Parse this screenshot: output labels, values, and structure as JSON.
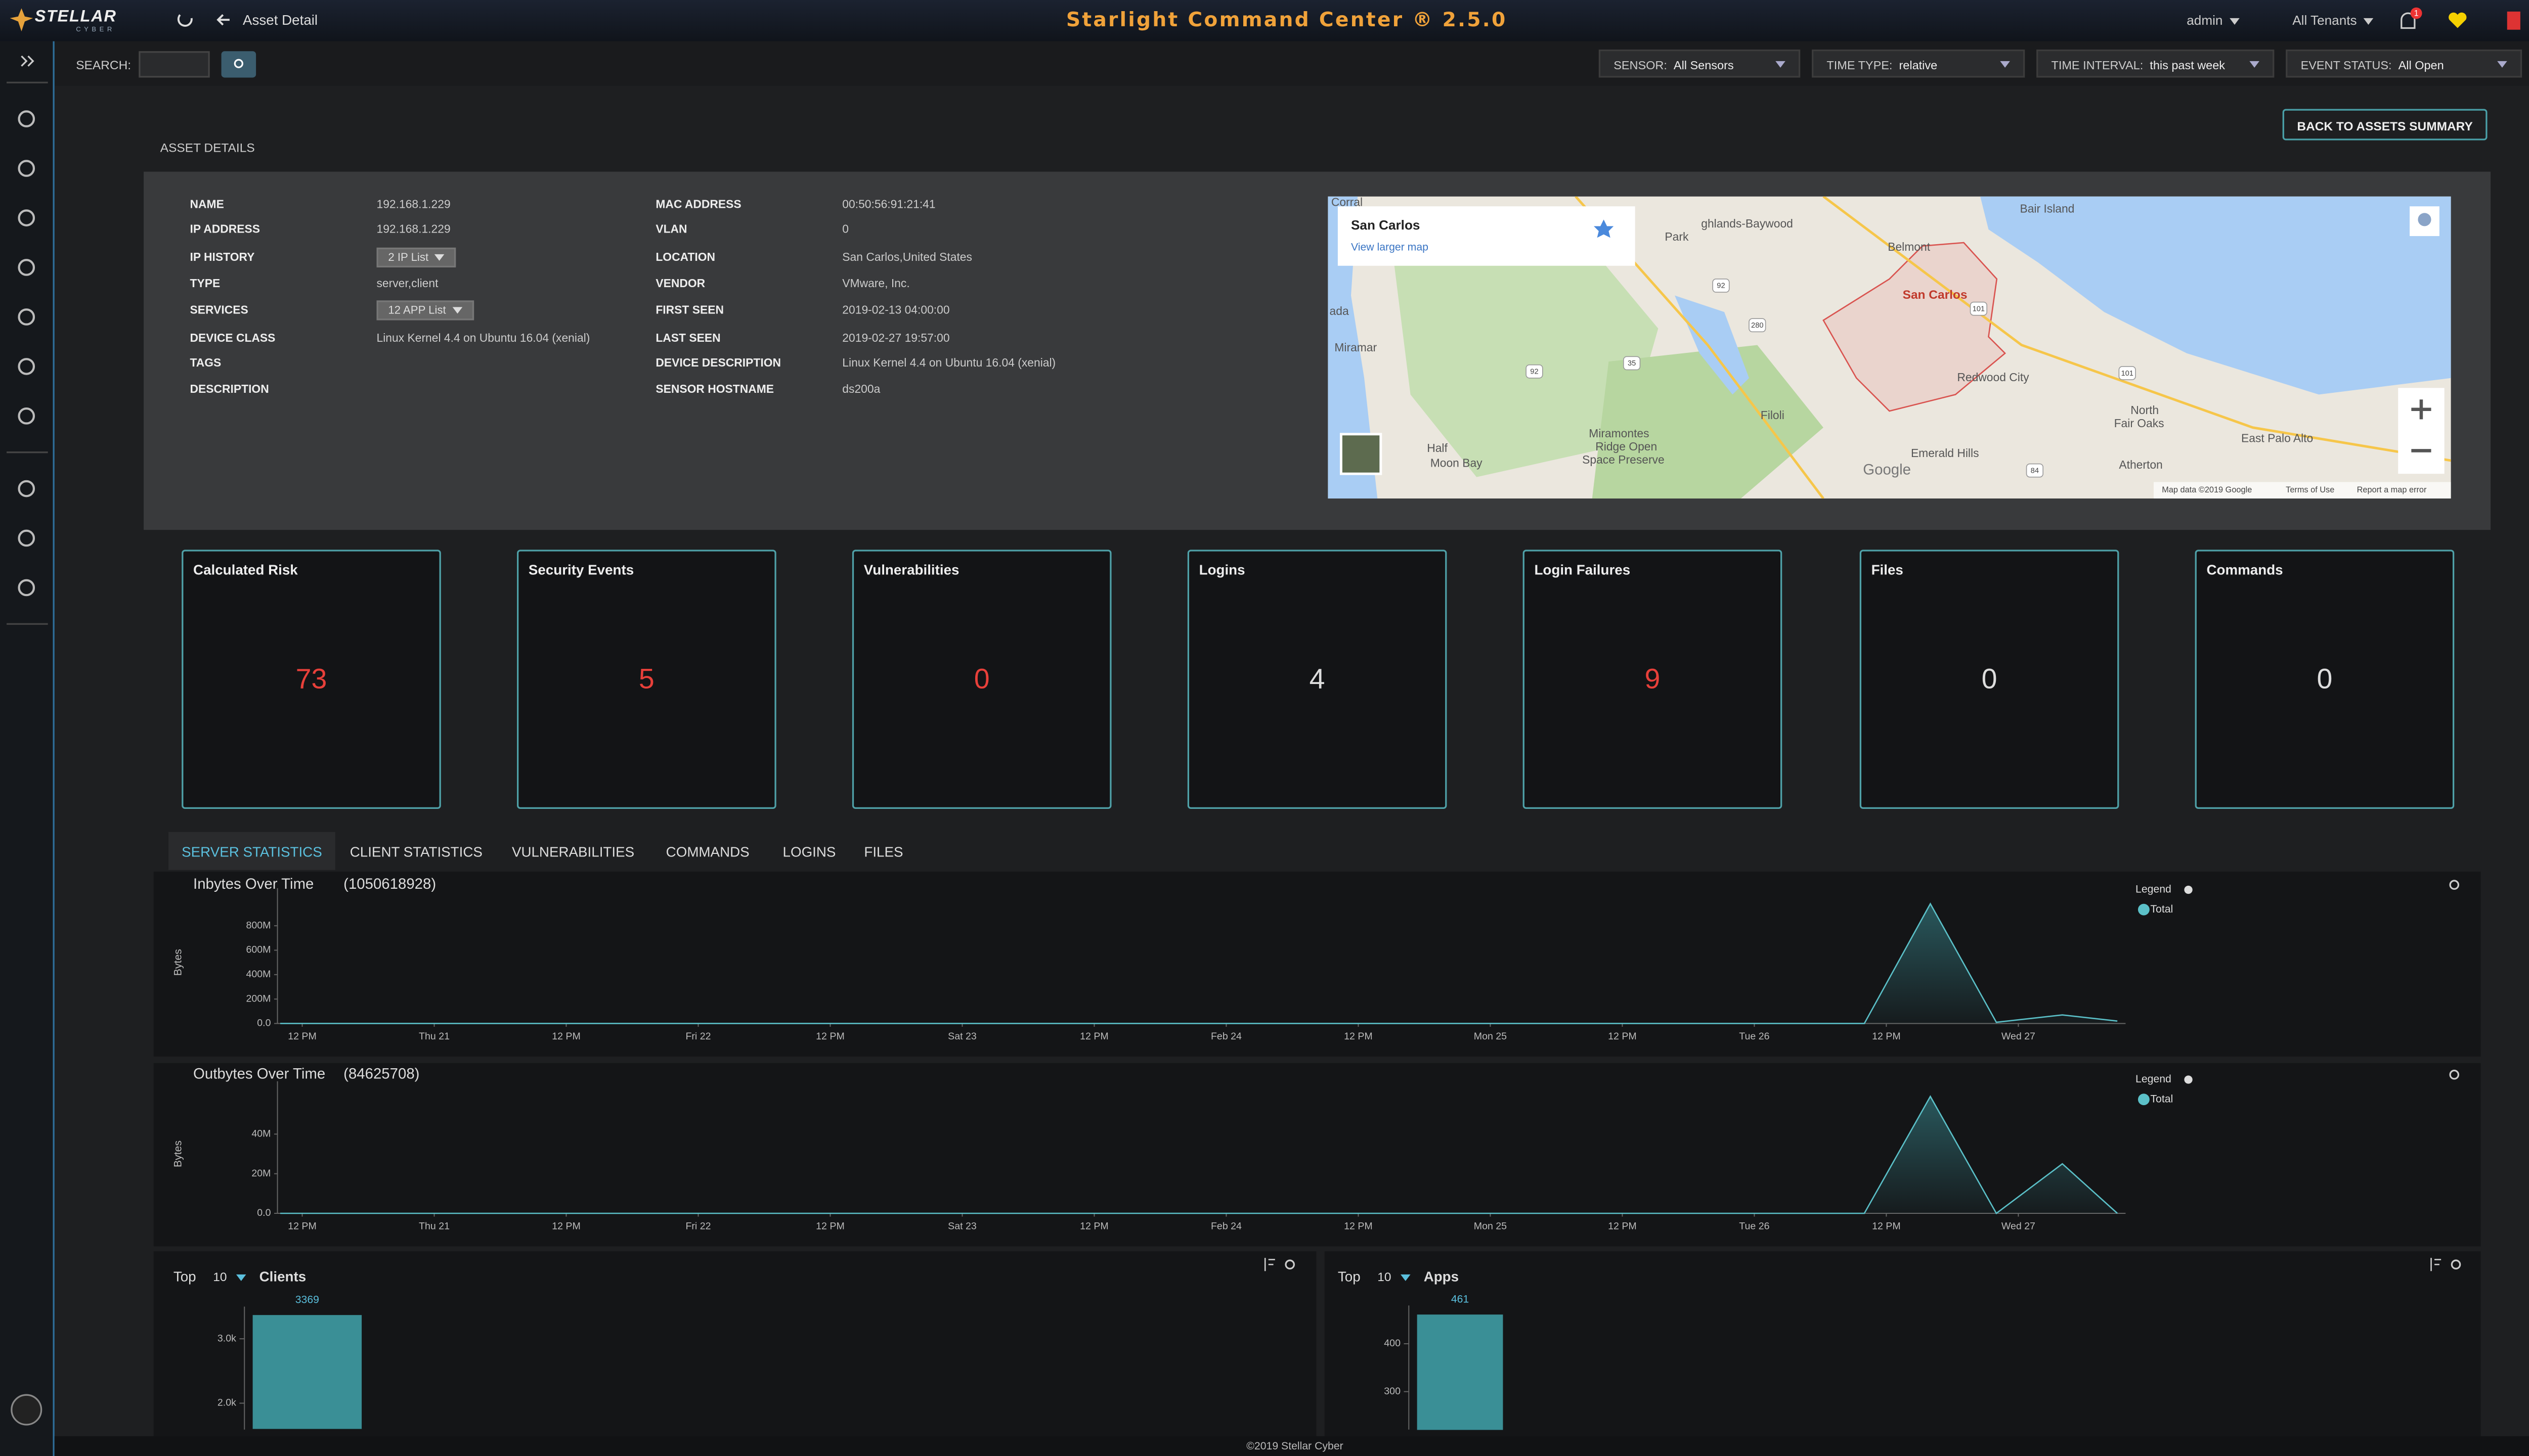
{
  "header": {
    "logo": "STELLAR",
    "logo_sub": "CYBER",
    "breadcrumb": "Asset Detail",
    "title": "Starlight Command Center ® 2.5.0",
    "user": "admin",
    "tenants": "All Tenants",
    "notification_count": 1
  },
  "toolbar": {
    "search_label": "SEARCH:",
    "filters": [
      {
        "label": "SENSOR:",
        "value": "All Sensors"
      },
      {
        "label": "TIME TYPE:",
        "value": "relative"
      },
      {
        "label": "TIME INTERVAL:",
        "value": "this past week"
      },
      {
        "label": "EVENT STATUS:",
        "value": "All Open"
      }
    ],
    "more": "..."
  },
  "asset": {
    "section_title": "ASSET DETAILS",
    "back_button": "BACK TO ASSETS SUMMARY",
    "left": [
      {
        "label": "NAME",
        "value": "192.168.1.229"
      },
      {
        "label": "IP ADDRESS",
        "value": "192.168.1.229"
      },
      {
        "label": "IP HISTORY",
        "dropdown": "2 IP List"
      },
      {
        "label": "TYPE",
        "value": "server,client"
      },
      {
        "label": "SERVICES",
        "dropdown": "12 APP List"
      },
      {
        "label": "DEVICE CLASS",
        "value": "Linux Kernel 4.4 on Ubuntu 16.04 (xenial)"
      },
      {
        "label": "TAGS"
      },
      {
        "label": "DESCRIPTION"
      }
    ],
    "right": [
      {
        "label": "MAC ADDRESS",
        "value": "00:50:56:91:21:41"
      },
      {
        "label": "VLAN",
        "value": "0"
      },
      {
        "label": "LOCATION",
        "value": "San Carlos,United States"
      },
      {
        "label": "VENDOR",
        "value": "VMware, Inc."
      },
      {
        "label": "FIRST SEEN",
        "value": "2019-02-13 04:00:00"
      },
      {
        "label": "LAST SEEN",
        "value": "2019-02-27 19:57:00"
      },
      {
        "label": "DEVICE DESCRIPTION",
        "value": "Linux Kernel 4.4 on Ubuntu 16.04 (xenial)"
      },
      {
        "label": "SENSOR HOSTNAME",
        "value": "ds200a"
      }
    ]
  },
  "map": {
    "place": "San Carlos",
    "link": "View larger map",
    "labels": [
      "Corral",
      "ghlands-Baywood",
      "Park",
      "Bair Island",
      "Belmont",
      "San Carlos",
      "Redwood City",
      "ada",
      "Miramar",
      "Half",
      "Moon Bay",
      "Filoli",
      "Miramontes",
      "Ridge Open",
      "Space Preserve",
      "Emerald Hills",
      "North",
      "Fair Oaks",
      "East Palo Alto",
      "Atherton"
    ],
    "routes": [
      "92",
      "280",
      "101",
      "101",
      "92",
      "35",
      "84"
    ],
    "brand": "Google",
    "attribution": [
      "Map data ©2019 Google",
      "Terms of Use",
      "Report a map error"
    ]
  },
  "stats": [
    {
      "label": "Calculated Risk",
      "value": 73,
      "color": "#e8403a"
    },
    {
      "label": "Security Events",
      "value": 5,
      "color": "#e8403a"
    },
    {
      "label": "Vulnerabilities",
      "value": 0,
      "color": "#e8403a"
    },
    {
      "label": "Logins",
      "value": 4,
      "color": "#dddddd"
    },
    {
      "label": "Login Failures",
      "value": 9,
      "color": "#e8403a"
    },
    {
      "label": "Files",
      "value": 0,
      "color": "#dddddd"
    },
    {
      "label": "Commands",
      "value": 0,
      "color": "#dddddd"
    }
  ],
  "tabs": [
    "SERVER STATISTICS",
    "CLIENT STATISTICS",
    "VULNERABILITIES",
    "COMMANDS",
    "LOGINS",
    "FILES"
  ],
  "active_tab": 0,
  "chart_data": [
    {
      "type": "area",
      "title": "Inbytes Over Time",
      "subtitle": "(1050618928)",
      "y_label": "Bytes",
      "legend_title": "Legend",
      "xlim": [
        -2.25,
        165.75
      ],
      "ylim": [
        0,
        1000000000
      ],
      "xticks": [
        {
          "value": 0,
          "label": "12 PM"
        },
        {
          "value": 12,
          "label": "Thu 21"
        },
        {
          "value": 24,
          "label": "12 PM"
        },
        {
          "value": 36,
          "label": "Fri 22"
        },
        {
          "value": 48,
          "label": "12 PM"
        },
        {
          "value": 60,
          "label": "Sat 23"
        },
        {
          "value": 72,
          "label": "12 PM"
        },
        {
          "value": 84,
          "label": "Feb 24"
        },
        {
          "value": 96,
          "label": "12 PM"
        },
        {
          "value": 108,
          "label": "Mon 25"
        },
        {
          "value": 120,
          "label": "12 PM"
        },
        {
          "value": 132,
          "label": "Tue 26"
        },
        {
          "value": 144,
          "label": "12 PM"
        },
        {
          "value": 156,
          "label": "Wed 27"
        }
      ],
      "yticks": [
        {
          "value": 0,
          "label": "0.0"
        },
        {
          "value": 200000000,
          "label": "200M"
        },
        {
          "value": 400000000,
          "label": "400M"
        },
        {
          "value": 600000000,
          "label": "600M"
        },
        {
          "value": 800000000,
          "label": "800M"
        }
      ],
      "series": [
        {
          "name": "Total",
          "color": "#5bc0c8",
          "x": [
            -2,
            142,
            148,
            154,
            160,
            165
          ],
          "values": [
            0,
            0,
            980000000,
            10000000,
            70000000,
            20000000
          ]
        }
      ]
    },
    {
      "type": "area",
      "title": "Outbytes Over Time",
      "subtitle": "(84625708)",
      "y_label": "Bytes",
      "legend_title": "Legend",
      "xlim": [
        -2.25,
        165.75
      ],
      "ylim": [
        0,
        60000000
      ],
      "xticks": [
        {
          "value": 0,
          "label": "12 PM"
        },
        {
          "value": 12,
          "label": "Thu 21"
        },
        {
          "value": 24,
          "label": "12 PM"
        },
        {
          "value": 36,
          "label": "Fri 22"
        },
        {
          "value": 48,
          "label": "12 PM"
        },
        {
          "value": 60,
          "label": "Sat 23"
        },
        {
          "value": 72,
          "label": "12 PM"
        },
        {
          "value": 84,
          "label": "Feb 24"
        },
        {
          "value": 96,
          "label": "12 PM"
        },
        {
          "value": 108,
          "label": "Mon 25"
        },
        {
          "value": 120,
          "label": "12 PM"
        },
        {
          "value": 132,
          "label": "Tue 26"
        },
        {
          "value": 144,
          "label": "12 PM"
        },
        {
          "value": 156,
          "label": "Wed 27"
        }
      ],
      "yticks": [
        {
          "value": 0,
          "label": "0.0"
        },
        {
          "value": 20000000,
          "label": "20M"
        },
        {
          "value": 40000000,
          "label": "40M"
        }
      ],
      "series": [
        {
          "name": "Total",
          "color": "#5bc0c8",
          "x": [
            -2,
            142,
            148,
            154,
            160,
            165
          ],
          "values": [
            0,
            0,
            59000000,
            0,
            25000000,
            0
          ]
        }
      ]
    },
    {
      "type": "bar",
      "top_label": "Top",
      "top_n": 10,
      "title": "Clients",
      "color": "#3a8f96",
      "categories": [
        null
      ],
      "values": [
        3369
      ],
      "ylim": [
        1600,
        3500
      ],
      "yticks": [
        {
          "value": 2000,
          "label": "2.0k"
        },
        {
          "value": 3000,
          "label": "3.0k"
        }
      ]
    },
    {
      "type": "bar",
      "top_label": "Top",
      "top_n": 10,
      "title": "Apps",
      "color": "#3a8f96",
      "categories": [
        null
      ],
      "values": [
        461
      ],
      "ylim": [
        220,
        480
      ],
      "yticks": [
        300,
        400
      ]
    }
  ],
  "footer": "©2019 Stellar Cyber"
}
